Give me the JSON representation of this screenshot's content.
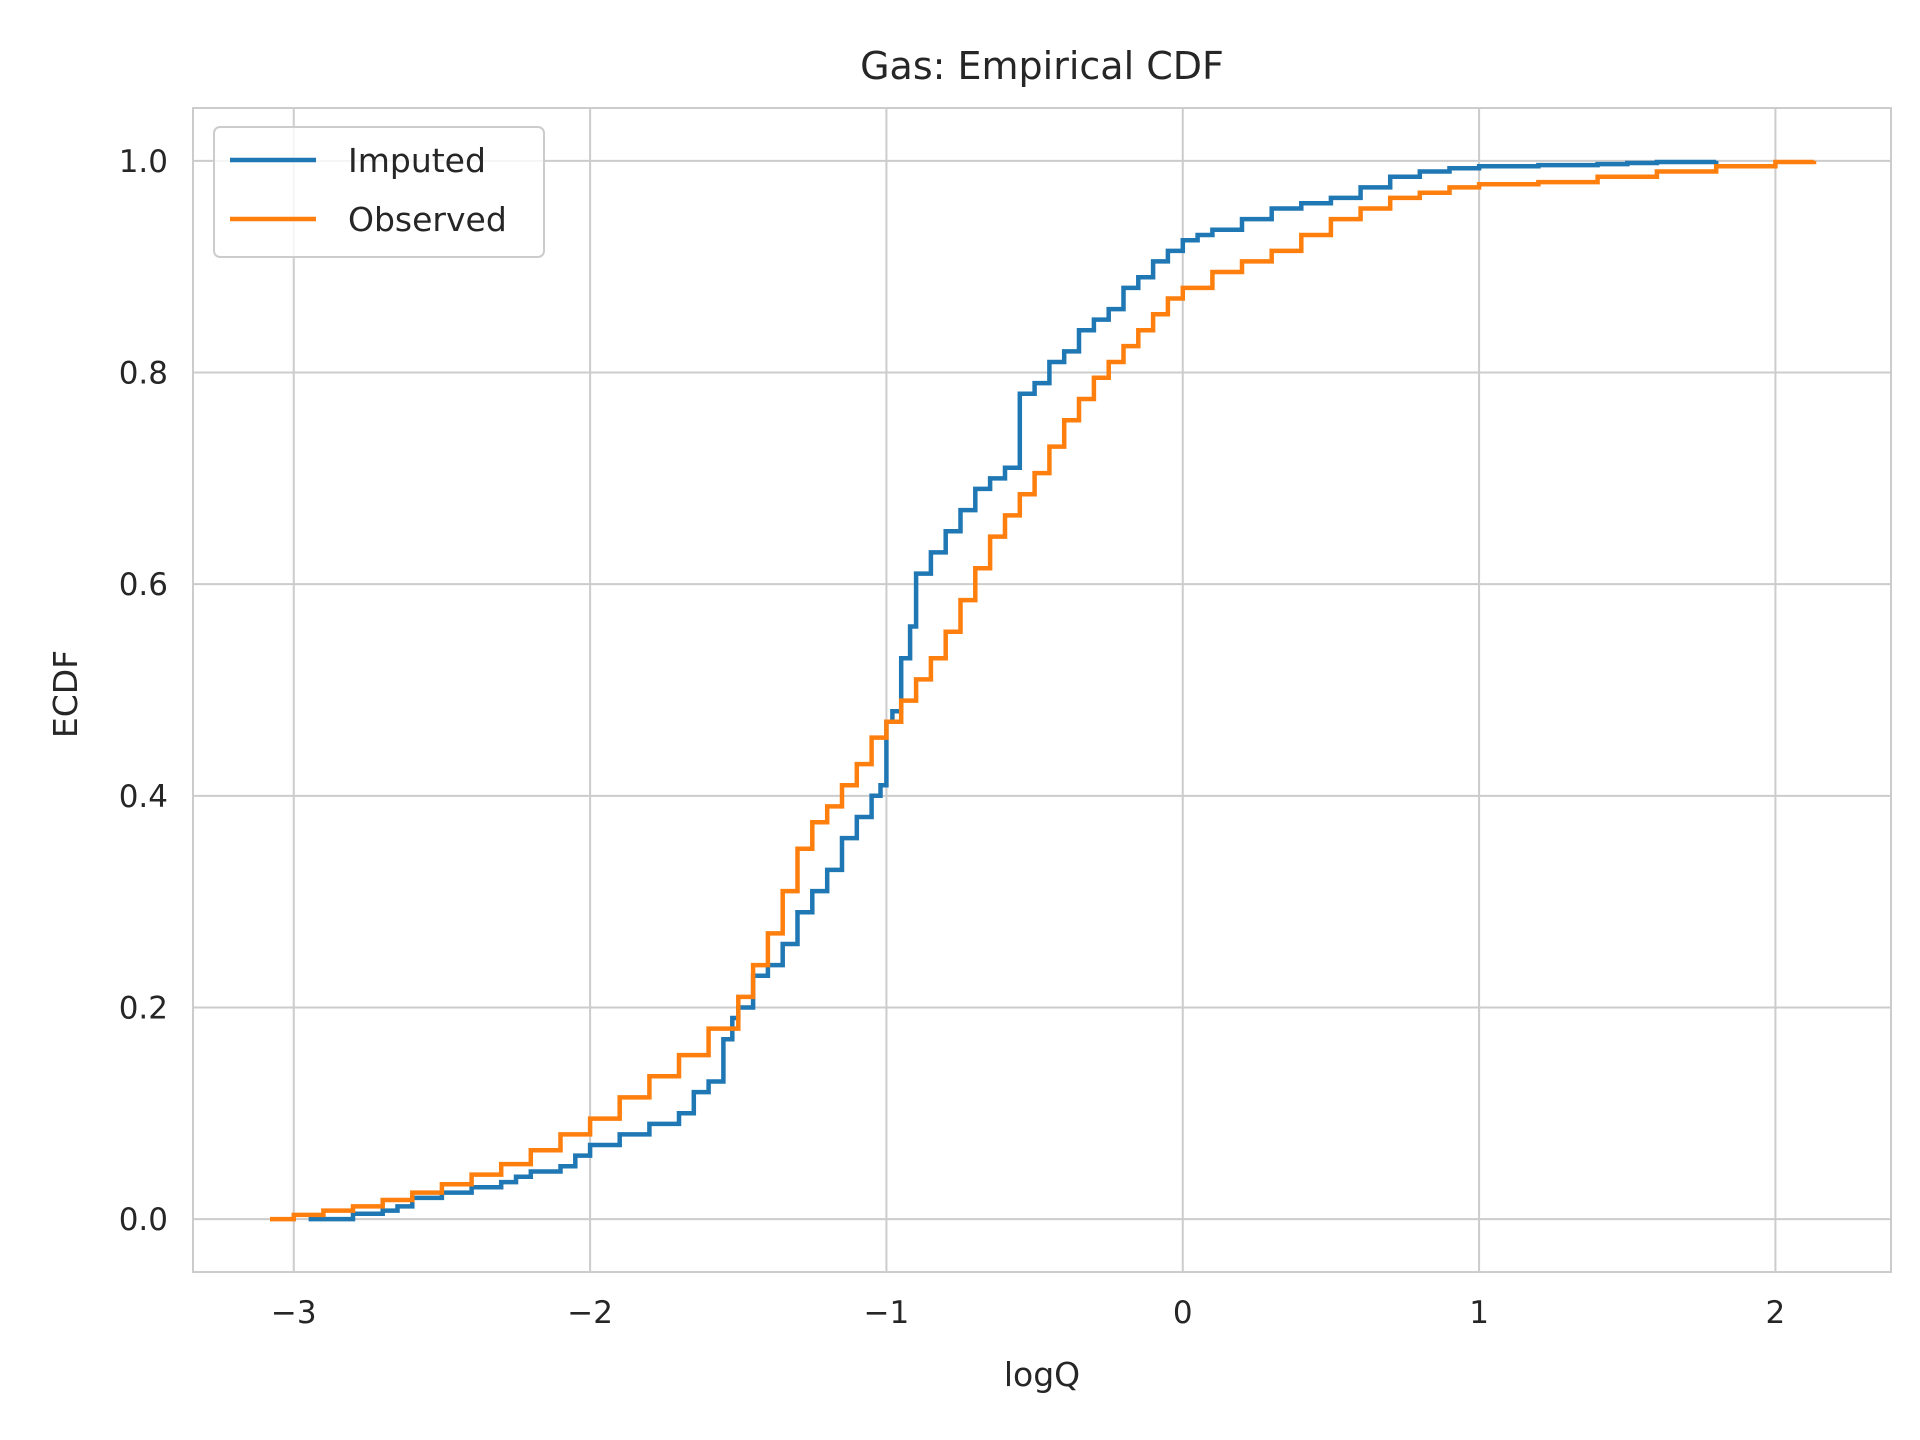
{
  "chart_data": {
    "type": "line",
    "title": "Gas: Empirical CDF",
    "xlabel": "logQ",
    "ylabel": "ECDF",
    "xlim": [
      -3.34,
      2.39
    ],
    "ylim": [
      -0.05,
      1.05
    ],
    "x_ticks": [
      -3,
      -2,
      -1,
      0,
      1,
      2
    ],
    "x_tick_labels": [
      "−3",
      "−2",
      "−1",
      "0",
      "1",
      "2"
    ],
    "y_ticks": [
      0.0,
      0.2,
      0.4,
      0.6,
      0.8,
      1.0
    ],
    "y_tick_labels": [
      "0.0",
      "0.2",
      "0.4",
      "0.6",
      "0.8",
      "1.0"
    ],
    "grid": true,
    "legend": "top-left",
    "step": true,
    "series": [
      {
        "name": "Imputed",
        "color": "#1f77b4",
        "points": [
          [
            -2.95,
            0.0
          ],
          [
            -2.8,
            0.005
          ],
          [
            -2.7,
            0.008
          ],
          [
            -2.65,
            0.012
          ],
          [
            -2.6,
            0.02
          ],
          [
            -2.5,
            0.025
          ],
          [
            -2.4,
            0.03
          ],
          [
            -2.3,
            0.035
          ],
          [
            -2.25,
            0.04
          ],
          [
            -2.2,
            0.045
          ],
          [
            -2.1,
            0.05
          ],
          [
            -2.05,
            0.06
          ],
          [
            -2.0,
            0.07
          ],
          [
            -1.9,
            0.08
          ],
          [
            -1.8,
            0.09
          ],
          [
            -1.7,
            0.1
          ],
          [
            -1.65,
            0.12
          ],
          [
            -1.6,
            0.13
          ],
          [
            -1.55,
            0.17
          ],
          [
            -1.52,
            0.19
          ],
          [
            -1.5,
            0.2
          ],
          [
            -1.45,
            0.23
          ],
          [
            -1.4,
            0.24
          ],
          [
            -1.35,
            0.26
          ],
          [
            -1.3,
            0.29
          ],
          [
            -1.25,
            0.31
          ],
          [
            -1.2,
            0.33
          ],
          [
            -1.15,
            0.36
          ],
          [
            -1.1,
            0.38
          ],
          [
            -1.05,
            0.4
          ],
          [
            -1.02,
            0.41
          ],
          [
            -1.0,
            0.47
          ],
          [
            -0.98,
            0.48
          ],
          [
            -0.95,
            0.53
          ],
          [
            -0.92,
            0.56
          ],
          [
            -0.9,
            0.61
          ],
          [
            -0.85,
            0.63
          ],
          [
            -0.8,
            0.65
          ],
          [
            -0.75,
            0.67
          ],
          [
            -0.7,
            0.69
          ],
          [
            -0.65,
            0.7
          ],
          [
            -0.6,
            0.71
          ],
          [
            -0.55,
            0.78
          ],
          [
            -0.5,
            0.79
          ],
          [
            -0.45,
            0.81
          ],
          [
            -0.4,
            0.82
          ],
          [
            -0.35,
            0.84
          ],
          [
            -0.3,
            0.85
          ],
          [
            -0.25,
            0.86
          ],
          [
            -0.2,
            0.88
          ],
          [
            -0.15,
            0.89
          ],
          [
            -0.1,
            0.905
          ],
          [
            -0.05,
            0.915
          ],
          [
            0.0,
            0.925
          ],
          [
            0.05,
            0.93
          ],
          [
            0.1,
            0.935
          ],
          [
            0.2,
            0.945
          ],
          [
            0.3,
            0.955
          ],
          [
            0.4,
            0.96
          ],
          [
            0.5,
            0.965
          ],
          [
            0.6,
            0.975
          ],
          [
            0.7,
            0.985
          ],
          [
            0.8,
            0.99
          ],
          [
            0.9,
            0.993
          ],
          [
            1.0,
            0.995
          ],
          [
            1.2,
            0.996
          ],
          [
            1.4,
            0.997
          ],
          [
            1.5,
            0.998
          ],
          [
            1.6,
            0.999
          ],
          [
            1.8,
            1.0
          ]
        ]
      },
      {
        "name": "Observed",
        "color": "#ff7f0e",
        "points": [
          [
            -3.08,
            0.0
          ],
          [
            -3.0,
            0.004
          ],
          [
            -2.9,
            0.008
          ],
          [
            -2.8,
            0.012
          ],
          [
            -2.7,
            0.018
          ],
          [
            -2.6,
            0.025
          ],
          [
            -2.5,
            0.033
          ],
          [
            -2.4,
            0.042
          ],
          [
            -2.3,
            0.052
          ],
          [
            -2.2,
            0.065
          ],
          [
            -2.1,
            0.08
          ],
          [
            -2.0,
            0.095
          ],
          [
            -1.9,
            0.115
          ],
          [
            -1.8,
            0.135
          ],
          [
            -1.7,
            0.155
          ],
          [
            -1.6,
            0.18
          ],
          [
            -1.5,
            0.21
          ],
          [
            -1.45,
            0.24
          ],
          [
            -1.4,
            0.27
          ],
          [
            -1.35,
            0.31
          ],
          [
            -1.3,
            0.35
          ],
          [
            -1.25,
            0.375
          ],
          [
            -1.2,
            0.39
          ],
          [
            -1.15,
            0.41
          ],
          [
            -1.1,
            0.43
          ],
          [
            -1.05,
            0.455
          ],
          [
            -1.0,
            0.47
          ],
          [
            -0.95,
            0.49
          ],
          [
            -0.9,
            0.51
          ],
          [
            -0.85,
            0.53
          ],
          [
            -0.8,
            0.555
          ],
          [
            -0.75,
            0.585
          ],
          [
            -0.7,
            0.615
          ],
          [
            -0.65,
            0.645
          ],
          [
            -0.6,
            0.665
          ],
          [
            -0.55,
            0.685
          ],
          [
            -0.5,
            0.705
          ],
          [
            -0.45,
            0.73
          ],
          [
            -0.4,
            0.755
          ],
          [
            -0.35,
            0.775
          ],
          [
            -0.3,
            0.795
          ],
          [
            -0.25,
            0.81
          ],
          [
            -0.2,
            0.825
          ],
          [
            -0.15,
            0.84
          ],
          [
            -0.1,
            0.855
          ],
          [
            -0.05,
            0.87
          ],
          [
            0.0,
            0.88
          ],
          [
            0.1,
            0.895
          ],
          [
            0.2,
            0.905
          ],
          [
            0.3,
            0.915
          ],
          [
            0.4,
            0.93
          ],
          [
            0.5,
            0.945
          ],
          [
            0.6,
            0.955
          ],
          [
            0.7,
            0.965
          ],
          [
            0.8,
            0.97
          ],
          [
            0.9,
            0.975
          ],
          [
            1.0,
            0.978
          ],
          [
            1.2,
            0.98
          ],
          [
            1.4,
            0.985
          ],
          [
            1.6,
            0.99
          ],
          [
            1.8,
            0.995
          ],
          [
            2.0,
            0.999
          ],
          [
            2.13,
            1.0
          ]
        ]
      }
    ]
  }
}
